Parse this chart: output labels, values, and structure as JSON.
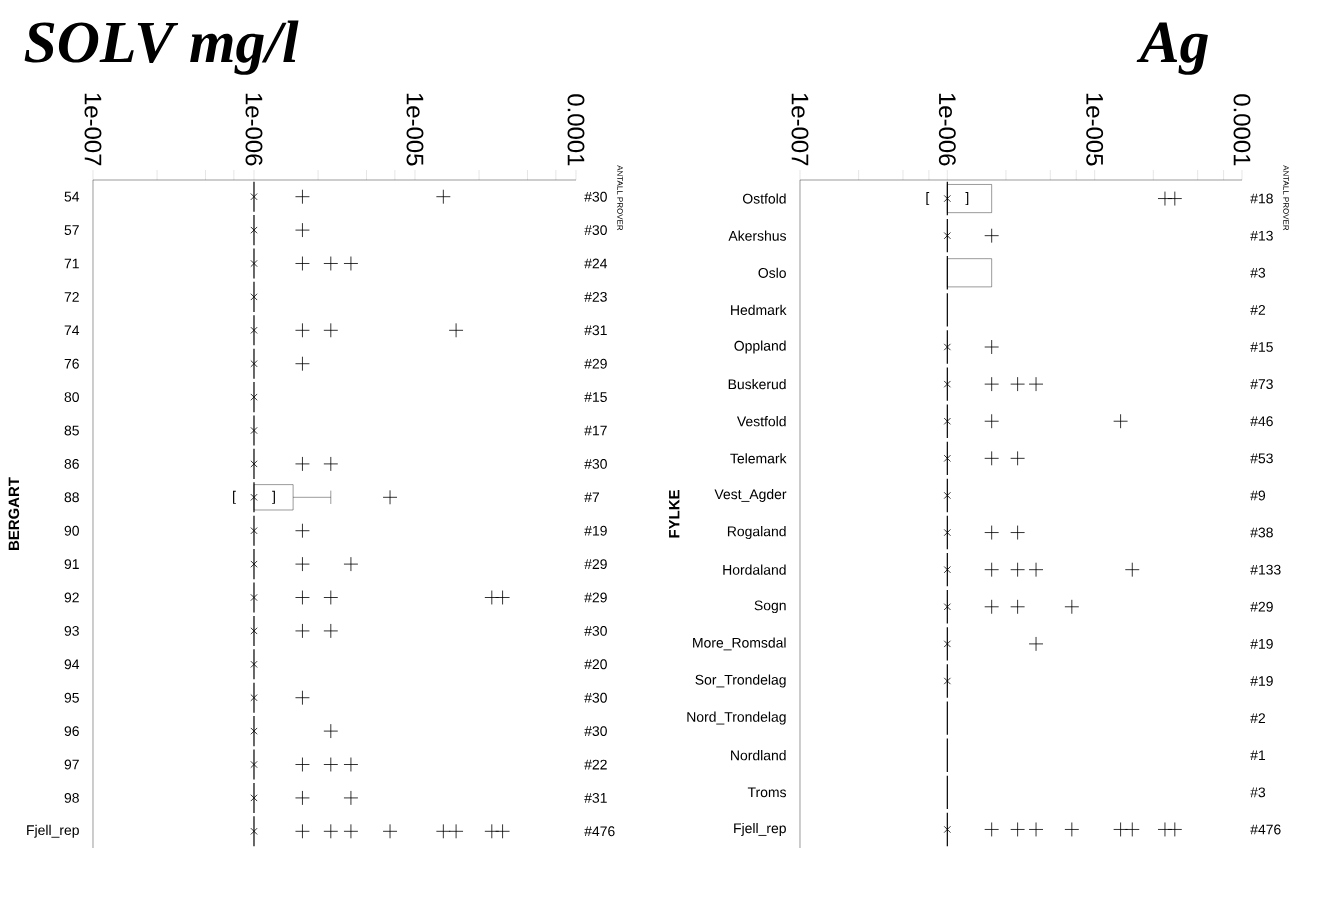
{
  "chart_data": [
    {
      "type": "box",
      "orientation": "horizontal",
      "title": "SOLV mg/l",
      "ylabel": "BERGART",
      "log": "x",
      "xlim": [
        1e-07,
        0.0001
      ],
      "xticks": [
        {
          "value": 1e-07,
          "label": "1e-007"
        },
        {
          "value": 2.5e-07,
          "label": null
        },
        {
          "value": 5e-07,
          "label": null
        },
        {
          "value": 7.5e-07,
          "label": null
        },
        {
          "value": 1e-06,
          "label": "1e-006"
        },
        {
          "value": 2.5e-06,
          "label": null
        },
        {
          "value": 5e-06,
          "label": null
        },
        {
          "value": 7.5e-06,
          "label": null
        },
        {
          "value": 1e-05,
          "label": "1e-005"
        },
        {
          "value": 2.5e-05,
          "label": null
        },
        {
          "value": 5e-05,
          "label": null
        },
        {
          "value": 7.5e-05,
          "label": null
        },
        {
          "value": 0.0001,
          "label": "0.0001"
        }
      ],
      "categories": [
        "54",
        "57",
        "71",
        "72",
        "74",
        "76",
        "80",
        "85",
        "86",
        "88",
        "90",
        "91",
        "92",
        "93",
        "94",
        "95",
        "96",
        "97",
        "98",
        "Fjell_rep"
      ],
      "boxes": [
        {
          "low": 1e-06,
          "q1": 1e-06,
          "median": 1e-06,
          "q3": 1e-06,
          "high": 1e-06,
          "mean": 1e-06,
          "outliers": [
            2e-06,
            1.5e-05
          ]
        },
        {
          "low": 1e-06,
          "q1": 1e-06,
          "median": 1e-06,
          "q3": 1e-06,
          "high": 1e-06,
          "mean": 1e-06,
          "outliers": [
            2e-06
          ]
        },
        {
          "low": 1e-06,
          "q1": 1e-06,
          "median": 1e-06,
          "q3": 1e-06,
          "high": 1e-06,
          "mean": 1e-06,
          "outliers": [
            2e-06,
            3e-06,
            4e-06
          ]
        },
        {
          "low": 1e-06,
          "q1": 1e-06,
          "median": 1e-06,
          "q3": 1e-06,
          "high": 1e-06,
          "mean": 1e-06
        },
        {
          "low": 1e-06,
          "q1": 1e-06,
          "median": 1e-06,
          "q3": 1e-06,
          "high": 1e-06,
          "mean": 1e-06,
          "outliers": [
            2e-06,
            3e-06,
            1.8e-05
          ]
        },
        {
          "low": 1e-06,
          "q1": 1e-06,
          "median": 1e-06,
          "q3": 1e-06,
          "high": 1e-06,
          "mean": 1e-06,
          "outliers": [
            2e-06
          ]
        },
        {
          "low": 1e-06,
          "q1": 1e-06,
          "median": 1e-06,
          "q3": 1e-06,
          "high": 1e-06,
          "mean": 1e-06
        },
        {
          "low": 1e-06,
          "q1": 1e-06,
          "median": 1e-06,
          "q3": 1e-06,
          "high": 1e-06,
          "mean": 1e-06
        },
        {
          "low": 1e-06,
          "q1": 1e-06,
          "median": 1e-06,
          "q3": 1e-06,
          "high": 1e-06,
          "mean": 1e-06,
          "outliers": [
            2e-06,
            3e-06
          ]
        },
        {
          "low": 1e-06,
          "q1": 1e-06,
          "median": 1e-06,
          "q3": 1.75e-06,
          "high": 3e-06,
          "mean": 1e-06,
          "outliers": [
            7e-06
          ]
        },
        {
          "low": 1e-06,
          "q1": 1e-06,
          "median": 1e-06,
          "q3": 1e-06,
          "high": 1e-06,
          "mean": 1e-06,
          "outliers": [
            2e-06
          ]
        },
        {
          "low": 1e-06,
          "q1": 1e-06,
          "median": 1e-06,
          "q3": 1e-06,
          "high": 1e-06,
          "mean": 1e-06,
          "outliers": [
            2e-06,
            4e-06
          ]
        },
        {
          "low": 1e-06,
          "q1": 1e-06,
          "median": 1e-06,
          "q3": 1e-06,
          "high": 1e-06,
          "mean": 1e-06,
          "outliers": [
            2e-06,
            3e-06,
            3e-05,
            3.5e-05
          ]
        },
        {
          "low": 1e-06,
          "q1": 1e-06,
          "median": 1e-06,
          "q3": 1e-06,
          "high": 1e-06,
          "mean": 1e-06,
          "outliers": [
            2e-06,
            3e-06
          ]
        },
        {
          "low": 1e-06,
          "q1": 1e-06,
          "median": 1e-06,
          "q3": 1e-06,
          "high": 1e-06,
          "mean": 1e-06
        },
        {
          "low": 1e-06,
          "q1": 1e-06,
          "median": 1e-06,
          "q3": 1e-06,
          "high": 1e-06,
          "mean": 1e-06,
          "outliers": [
            2e-06
          ]
        },
        {
          "low": 1e-06,
          "q1": 1e-06,
          "median": 1e-06,
          "q3": 1e-06,
          "high": 1e-06,
          "mean": 1e-06,
          "outliers": [
            3e-06
          ]
        },
        {
          "low": 1e-06,
          "q1": 1e-06,
          "median": 1e-06,
          "q3": 1e-06,
          "high": 1e-06,
          "mean": 1e-06,
          "outliers": [
            2e-06,
            3e-06,
            4e-06
          ]
        },
        {
          "low": 1e-06,
          "q1": 1e-06,
          "median": 1e-06,
          "q3": 1e-06,
          "high": 1e-06,
          "mean": 1e-06,
          "outliers": [
            2e-06,
            4e-06
          ]
        },
        {
          "low": 1e-06,
          "q1": 1e-06,
          "median": 1e-06,
          "q3": 1e-06,
          "high": 1e-06,
          "mean": 1e-06,
          "outliers": [
            2e-06,
            3e-06,
            4e-06,
            7e-06,
            1.5e-05,
            1.8e-05,
            3e-05,
            3.5e-05
          ]
        }
      ],
      "annotations": [
        "ANTALL PROVER",
        "#30",
        "#30",
        "#24",
        "#23",
        "#31",
        "#29",
        "#15",
        "#17",
        "#30",
        "#7",
        "#19",
        "#29",
        "#29",
        "#30",
        "#20",
        "#30",
        "#30",
        "#22",
        "#31",
        "#476",
        "[",
        "]"
      ]
    },
    {
      "type": "box",
      "orientation": "horizontal",
      "title": "Ag",
      "ylabel": "FYLKE",
      "log": "x",
      "xlim": [
        1e-07,
        0.0001
      ],
      "xticks": [
        {
          "value": 1e-07,
          "label": "1e-007"
        },
        {
          "value": 2.5e-07,
          "label": null
        },
        {
          "value": 5e-07,
          "label": null
        },
        {
          "value": 7.5e-07,
          "label": null
        },
        {
          "value": 1e-06,
          "label": "1e-006"
        },
        {
          "value": 2.5e-06,
          "label": null
        },
        {
          "value": 5e-06,
          "label": null
        },
        {
          "value": 7.5e-06,
          "label": null
        },
        {
          "value": 1e-05,
          "label": "1e-005"
        },
        {
          "value": 2.5e-05,
          "label": null
        },
        {
          "value": 5e-05,
          "label": null
        },
        {
          "value": 7.5e-05,
          "label": null
        },
        {
          "value": 0.0001,
          "label": "0.0001"
        }
      ],
      "categories": [
        "Ostfold",
        "Akershus",
        "Oslo",
        "Hedmark",
        "Oppland",
        "Buskerud",
        "Vestfold",
        "Telemark",
        "Vest_Agder",
        "Rogaland",
        "Hordaland",
        "Sogn",
        "More_Romsdal",
        "Sor_Trondelag",
        "Nord_Trondelag",
        "Nordland",
        "Troms",
        "Fjell_rep"
      ],
      "boxes": [
        {
          "low": 1e-06,
          "q1": 1e-06,
          "median": 1e-06,
          "q3": 2e-06,
          "high": 2e-06,
          "mean": 1e-06,
          "outliers": [
            3e-05,
            3.5e-05
          ]
        },
        {
          "low": 1e-06,
          "q1": 1e-06,
          "median": 1e-06,
          "q3": 1e-06,
          "high": 1e-06,
          "mean": 1e-06,
          "outliers": [
            2e-06
          ]
        },
        {
          "low": 1e-06,
          "q1": 1e-06,
          "median": 1e-06,
          "q3": 2e-06,
          "high": 2e-06
        },
        {
          "low": 1e-06,
          "q1": 1e-06,
          "median": 1e-06,
          "q3": 1e-06,
          "high": 1e-06
        },
        {
          "low": 1e-06,
          "q1": 1e-06,
          "median": 1e-06,
          "q3": 1e-06,
          "high": 1e-06,
          "mean": 1e-06,
          "outliers": [
            2e-06
          ]
        },
        {
          "low": 1e-06,
          "q1": 1e-06,
          "median": 1e-06,
          "q3": 1e-06,
          "high": 1e-06,
          "mean": 1e-06,
          "outliers": [
            2e-06,
            3e-06,
            4e-06
          ]
        },
        {
          "low": 1e-06,
          "q1": 1e-06,
          "median": 1e-06,
          "q3": 1e-06,
          "high": 1e-06,
          "mean": 1e-06,
          "outliers": [
            2e-06,
            1.5e-05
          ]
        },
        {
          "low": 1e-06,
          "q1": 1e-06,
          "median": 1e-06,
          "q3": 1e-06,
          "high": 1e-06,
          "mean": 1e-06,
          "outliers": [
            2e-06,
            3e-06
          ]
        },
        {
          "low": 1e-06,
          "q1": 1e-06,
          "median": 1e-06,
          "q3": 1e-06,
          "high": 1e-06,
          "mean": 1e-06
        },
        {
          "low": 1e-06,
          "q1": 1e-06,
          "median": 1e-06,
          "q3": 1e-06,
          "high": 1e-06,
          "mean": 1e-06,
          "outliers": [
            2e-06,
            3e-06
          ]
        },
        {
          "low": 1e-06,
          "q1": 1e-06,
          "median": 1e-06,
          "q3": 1e-06,
          "high": 1e-06,
          "mean": 1e-06,
          "outliers": [
            2e-06,
            3e-06,
            4e-06,
            1.8e-05
          ]
        },
        {
          "low": 1e-06,
          "q1": 1e-06,
          "median": 1e-06,
          "q3": 1e-06,
          "high": 1e-06,
          "mean": 1e-06,
          "outliers": [
            2e-06,
            3e-06,
            7e-06
          ]
        },
        {
          "low": 1e-06,
          "q1": 1e-06,
          "median": 1e-06,
          "q3": 1e-06,
          "high": 1e-06,
          "mean": 1e-06,
          "outliers": [
            4e-06
          ]
        },
        {
          "low": 1e-06,
          "q1": 1e-06,
          "median": 1e-06,
          "q3": 1e-06,
          "high": 1e-06,
          "mean": 1e-06
        },
        {
          "low": 1e-06,
          "q1": 1e-06,
          "median": 1e-06,
          "q3": 1e-06,
          "high": 1e-06
        },
        {
          "low": 1e-06,
          "q1": 1e-06,
          "median": 1e-06,
          "q3": 1e-06,
          "high": 1e-06
        },
        {
          "low": 1e-06,
          "q1": 1e-06,
          "median": 1e-06,
          "q3": 1e-06,
          "high": 1e-06
        },
        {
          "low": 1e-06,
          "q1": 1e-06,
          "median": 1e-06,
          "q3": 1e-06,
          "high": 1e-06,
          "mean": 1e-06,
          "outliers": [
            2e-06,
            3e-06,
            4e-06,
            7e-06,
            1.5e-05,
            1.8e-05,
            3e-05,
            3.5e-05
          ]
        }
      ],
      "annotations": [
        "ANTALL PROVER",
        "#18",
        "#13",
        "#3",
        "#2",
        "#15",
        "#73",
        "#46",
        "#53",
        "#9",
        "#38",
        "#133",
        "#29",
        "#19",
        "#19",
        "#2",
        "#1",
        "#3",
        "#476",
        "[",
        "]"
      ]
    }
  ]
}
